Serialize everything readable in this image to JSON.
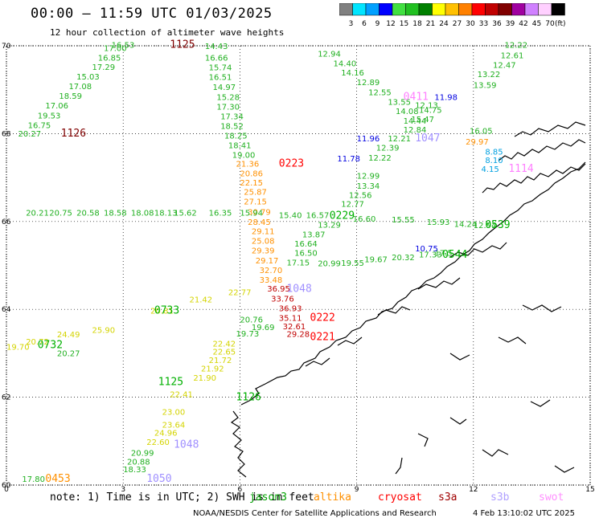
{
  "header": {
    "title": "00:00 – 11:59 UTC 01/03/2025",
    "subtitle": "12 hour collection of altimeter wave heights"
  },
  "color_scale": {
    "bins": [
      {
        "label": "3",
        "color": "#808080"
      },
      {
        "label": "6",
        "color": "#00e5ff"
      },
      {
        "label": "9",
        "color": "#00a0ff"
      },
      {
        "label": "12",
        "color": "#0000ff"
      },
      {
        "label": "15",
        "color": "#40e040"
      },
      {
        "label": "18",
        "color": "#20c020"
      },
      {
        "label": "21",
        "color": "#008000"
      },
      {
        "label": "24",
        "color": "#ffff00"
      },
      {
        "label": "27",
        "color": "#ffc000"
      },
      {
        "label": "30",
        "color": "#ff8000"
      },
      {
        "label": "33",
        "color": "#ff0000"
      },
      {
        "label": "36",
        "color": "#c00000"
      },
      {
        "label": "39",
        "color": "#800000"
      },
      {
        "label": "42",
        "color": "#a000a0"
      },
      {
        "label": "45",
        "color": "#d080ff"
      },
      {
        "label": "70",
        "color": "#ffd0ff"
      },
      {
        "label": "",
        "color": "#000000"
      }
    ],
    "unit": "(ft)"
  },
  "axes": {
    "lat_ticks": [
      "70",
      "68",
      "66",
      "64",
      "62",
      "60"
    ],
    "lon_ticks": [
      "0",
      "3",
      "6",
      "9",
      "12",
      "15"
    ]
  },
  "swh_tracks": [
    {
      "color": "#20b020",
      "points": [
        {
          "lat": 69.95,
          "lon": 2.7,
          "swh": "16.53"
        },
        {
          "lat": 69.88,
          "lon": 2.5,
          "swh": "17.00"
        },
        {
          "lat": 69.66,
          "lon": 2.35,
          "swh": "16.85"
        },
        {
          "lat": 69.45,
          "lon": 2.2,
          "swh": "17.29"
        },
        {
          "lat": 69.23,
          "lon": 1.8,
          "swh": "15.03"
        },
        {
          "lat": 69.01,
          "lon": 1.6,
          "swh": "17.08"
        },
        {
          "lat": 68.79,
          "lon": 1.35,
          "swh": "18.59"
        },
        {
          "lat": 68.57,
          "lon": 1.0,
          "swh": "17.06"
        },
        {
          "lat": 68.35,
          "lon": 0.8,
          "swh": "19.53"
        },
        {
          "lat": 68.13,
          "lon": 0.55,
          "swh": "16.75"
        },
        {
          "lat": 67.93,
          "lon": 0.3,
          "swh": "20.27"
        }
      ]
    },
    {
      "color": "#20b020",
      "points": [
        {
          "lat": 69.93,
          "lon": 5.1,
          "swh": "14.43"
        },
        {
          "lat": 69.66,
          "lon": 5.1,
          "swh": "16.66"
        },
        {
          "lat": 69.44,
          "lon": 5.2,
          "swh": "15.74"
        },
        {
          "lat": 69.22,
          "lon": 5.2,
          "swh": "16.51"
        },
        {
          "lat": 68.99,
          "lon": 5.3,
          "swh": "14.97"
        },
        {
          "lat": 68.77,
          "lon": 5.4,
          "swh": "15.28"
        },
        {
          "lat": 68.55,
          "lon": 5.4,
          "swh": "17.30"
        },
        {
          "lat": 68.33,
          "lon": 5.5,
          "swh": "17.34"
        },
        {
          "lat": 68.11,
          "lon": 5.5,
          "swh": "18.52"
        },
        {
          "lat": 67.89,
          "lon": 5.6,
          "swh": "18.25"
        },
        {
          "lat": 67.67,
          "lon": 5.7,
          "swh": "18.41"
        },
        {
          "lat": 67.45,
          "lon": 5.8,
          "swh": "19.00"
        }
      ]
    },
    {
      "color": "#ff9000",
      "points": [
        {
          "lat": 67.25,
          "lon": 5.9,
          "swh": "21.36"
        },
        {
          "lat": 67.03,
          "lon": 6.0,
          "swh": "20.86"
        },
        {
          "lat": 66.82,
          "lon": 6.0,
          "swh": "22.15"
        },
        {
          "lat": 66.61,
          "lon": 6.1,
          "swh": "25.87"
        },
        {
          "lat": 66.39,
          "lon": 6.1,
          "swh": "27.15"
        },
        {
          "lat": 66.15,
          "lon": 6.2,
          "swh": "30.79"
        },
        {
          "lat": 65.92,
          "lon": 6.2,
          "swh": "28.45"
        },
        {
          "lat": 65.71,
          "lon": 6.3,
          "swh": "29.11"
        },
        {
          "lat": 65.49,
          "lon": 6.3,
          "swh": "25.08"
        },
        {
          "lat": 65.27,
          "lon": 6.3,
          "swh": "29.39"
        },
        {
          "lat": 65.05,
          "lon": 6.4,
          "swh": "29.17"
        },
        {
          "lat": 64.83,
          "lon": 6.5,
          "swh": "32.70"
        },
        {
          "lat": 64.61,
          "lon": 6.5,
          "swh": "33.48"
        }
      ]
    },
    {
      "color": "#c00000",
      "points": [
        {
          "lat": 64.41,
          "lon": 6.7,
          "swh": "36.95"
        },
        {
          "lat": 64.18,
          "lon": 6.8,
          "swh": "33.76"
        },
        {
          "lat": 63.96,
          "lon": 7.0,
          "swh": "36.93"
        },
        {
          "lat": 63.74,
          "lon": 7.0,
          "swh": "35.11"
        },
        {
          "lat": 63.55,
          "lon": 7.1,
          "swh": "32.61"
        },
        {
          "lat": 63.37,
          "lon": 7.2,
          "swh": "29.28"
        }
      ]
    },
    {
      "color": "#20b020",
      "points": [
        {
          "lat": 69.75,
          "lon": 8.0,
          "swh": "12.94"
        },
        {
          "lat": 69.53,
          "lon": 8.4,
          "swh": "14.40"
        },
        {
          "lat": 69.32,
          "lon": 8.6,
          "swh": "14.16"
        },
        {
          "lat": 69.1,
          "lon": 9.0,
          "swh": "12.89"
        },
        {
          "lat": 68.88,
          "lon": 9.3,
          "swh": "12.55"
        },
        {
          "lat": 68.66,
          "lon": 9.8,
          "swh": "13.55"
        },
        {
          "lat": 68.45,
          "lon": 10.0,
          "swh": "14.08"
        },
        {
          "lat": 68.23,
          "lon": 10.2,
          "swh": "14.44"
        },
        {
          "lat": 68.03,
          "lon": 10.2,
          "swh": "12.84"
        },
        {
          "lat": 67.82,
          "lon": 9.8,
          "swh": "12.21"
        },
        {
          "lat": 67.61,
          "lon": 9.5,
          "swh": "12.39"
        },
        {
          "lat": 67.39,
          "lon": 9.3,
          "swh": "12.22"
        },
        {
          "lat": 66.97,
          "lon": 9.0,
          "swh": "12.99"
        },
        {
          "lat": 66.75,
          "lon": 9.0,
          "swh": "13.34"
        },
        {
          "lat": 66.54,
          "lon": 8.8,
          "swh": "12.56"
        },
        {
          "lat": 66.33,
          "lon": 8.6,
          "swh": "12.77"
        },
        {
          "lat": 65.86,
          "lon": 8.0,
          "swh": "13.29"
        },
        {
          "lat": 65.64,
          "lon": 7.6,
          "swh": "13.87"
        },
        {
          "lat": 65.43,
          "lon": 7.4,
          "swh": "16.64"
        },
        {
          "lat": 65.22,
          "lon": 7.4,
          "swh": "16.50"
        },
        {
          "lat": 65.0,
          "lon": 7.2,
          "swh": "17.15"
        }
      ]
    },
    {
      "color": "#20b020",
      "points": [
        {
          "lat": 66.13,
          "lon": 0.5,
          "swh": "20.21"
        },
        {
          "lat": 66.13,
          "lon": 1.1,
          "swh": "20.75"
        },
        {
          "lat": 66.13,
          "lon": 1.8,
          "swh": "20.58"
        },
        {
          "lat": 66.13,
          "lon": 2.5,
          "swh": "18.58"
        },
        {
          "lat": 66.13,
          "lon": 3.2,
          "swh": "18.08"
        },
        {
          "lat": 66.13,
          "lon": 3.8,
          "swh": "18.13"
        },
        {
          "lat": 66.13,
          "lon": 4.3,
          "swh": "15.62"
        },
        {
          "lat": 66.13,
          "lon": 5.2,
          "swh": "16.35"
        },
        {
          "lat": 66.13,
          "lon": 6.0,
          "swh": "15.94"
        },
        {
          "lat": 66.08,
          "lon": 7.0,
          "swh": "15.40"
        },
        {
          "lat": 66.08,
          "lon": 7.7,
          "swh": "16.57"
        },
        {
          "lat": 66.0,
          "lon": 8.9,
          "swh": "16.60"
        },
        {
          "lat": 65.98,
          "lon": 9.9,
          "swh": "15.55"
        },
        {
          "lat": 65.92,
          "lon": 10.8,
          "swh": "15.93"
        },
        {
          "lat": 65.88,
          "lon": 11.5,
          "swh": "14.24"
        },
        {
          "lat": 65.85,
          "lon": 12.0,
          "swh": "12.94"
        }
      ]
    },
    {
      "color": "#20b020",
      "points": [
        {
          "lat": 64.98,
          "lon": 8.0,
          "swh": "20.99"
        },
        {
          "lat": 64.99,
          "lon": 8.6,
          "swh": "19.55"
        },
        {
          "lat": 65.07,
          "lon": 9.2,
          "swh": "19.67"
        },
        {
          "lat": 65.12,
          "lon": 9.9,
          "swh": "20.32"
        },
        {
          "lat": 65.18,
          "lon": 10.6,
          "swh": "17.33"
        },
        {
          "lat": 65.22,
          "lon": 11.0,
          "swh": "17.5"
        }
      ]
    },
    {
      "color": "#d4d400",
      "points": [
        {
          "lat": 63.08,
          "lon": 0.0,
          "swh": "19.70"
        },
        {
          "lat": 63.2,
          "lon": 0.5,
          "swh": "20.72"
        },
        {
          "lat": 63.36,
          "lon": 1.3,
          "swh": "24.49"
        },
        {
          "lat": 63.46,
          "lon": 2.2,
          "swh": "25.90"
        },
        {
          "lat": 63.9,
          "lon": 3.7,
          "swh": "20.81"
        },
        {
          "lat": 64.16,
          "lon": 4.7,
          "swh": "21.42"
        },
        {
          "lat": 64.32,
          "lon": 5.7,
          "swh": "22.77"
        }
      ]
    },
    {
      "color": "#20b020",
      "points": [
        {
          "lat": 62.93,
          "lon": 1.3,
          "swh": "20.27"
        },
        {
          "lat": 63.7,
          "lon": 6.0,
          "swh": "20.76"
        },
        {
          "lat": 63.38,
          "lon": 5.9,
          "swh": "19.73"
        },
        {
          "lat": 63.53,
          "lon": 6.3,
          "swh": "19.69"
        }
      ]
    },
    {
      "color": "#d4d400",
      "points": [
        {
          "lat": 63.15,
          "lon": 5.3,
          "swh": "22.42"
        },
        {
          "lat": 62.97,
          "lon": 5.3,
          "swh": "22.65"
        },
        {
          "lat": 62.78,
          "lon": 5.2,
          "swh": "21.72"
        },
        {
          "lat": 62.59,
          "lon": 5.0,
          "swh": "21.92"
        },
        {
          "lat": 62.38,
          "lon": 4.8,
          "swh": "21.90"
        },
        {
          "lat": 62.0,
          "lon": 4.2,
          "swh": "22.41"
        },
        {
          "lat": 61.6,
          "lon": 4.0,
          "swh": "23.00"
        },
        {
          "lat": 61.31,
          "lon": 4.0,
          "swh": "23.64"
        },
        {
          "lat": 61.12,
          "lon": 3.8,
          "swh": "24.96"
        },
        {
          "lat": 60.91,
          "lon": 3.6,
          "swh": "22.60"
        }
      ]
    },
    {
      "color": "#20b020",
      "points": [
        {
          "lat": 60.67,
          "lon": 3.2,
          "swh": "20.99"
        },
        {
          "lat": 60.47,
          "lon": 3.1,
          "swh": "20.88"
        },
        {
          "lat": 60.29,
          "lon": 3.0,
          "swh": "18.33"
        },
        {
          "lat": 60.07,
          "lon": 0.4,
          "swh": "17.80"
        }
      ]
    },
    {
      "color": "#20b020",
      "points": [
        {
          "lat": 69.95,
          "lon": 12.8,
          "swh": "12.22"
        },
        {
          "lat": 69.72,
          "lon": 12.7,
          "swh": "12.61"
        },
        {
          "lat": 69.5,
          "lon": 12.5,
          "swh": "12.47"
        },
        {
          "lat": 69.29,
          "lon": 12.1,
          "swh": "13.22"
        },
        {
          "lat": 69.04,
          "lon": 12.0,
          "swh": "13.59"
        },
        {
          "lat": 68.47,
          "lon": 10.6,
          "swh": "14.75"
        },
        {
          "lat": 68.26,
          "lon": 10.4,
          "swh": "15.47"
        },
        {
          "lat": 68.0,
          "lon": 11.9,
          "swh": "16.05"
        }
      ]
    },
    {
      "color": "#0000e0",
      "points": [
        {
          "lat": 68.77,
          "lon": 11.0,
          "swh": "11.98"
        },
        {
          "lat": 67.82,
          "lon": 9.0,
          "swh": "11.96"
        },
        {
          "lat": 67.37,
          "lon": 8.5,
          "swh": "11.78"
        },
        {
          "lat": 65.32,
          "lon": 10.5,
          "swh": "10.75"
        }
      ]
    },
    {
      "color": "#20b020",
      "points": [
        {
          "lat": 68.58,
          "lon": 10.5,
          "swh": "12.13"
        }
      ]
    },
    {
      "color": "#ff9000",
      "points": [
        {
          "lat": 67.75,
          "lon": 11.8,
          "swh": "29.97"
        }
      ]
    },
    {
      "color": "#00a0e0",
      "points": [
        {
          "lat": 67.52,
          "lon": 12.3,
          "swh": "8.85"
        },
        {
          "lat": 67.33,
          "lon": 12.3,
          "swh": "8.10"
        },
        {
          "lat": 67.13,
          "lon": 12.2,
          "swh": "4.15"
        }
      ]
    }
  ],
  "pass_times": [
    {
      "text": "1125",
      "lat": 69.95,
      "lon": 4.2,
      "color": "#800000"
    },
    {
      "text": "1126",
      "lat": 67.93,
      "lon": 1.4,
      "color": "#800000"
    },
    {
      "text": "0223",
      "lat": 67.25,
      "lon": 7.0,
      "color": "#ff0000"
    },
    {
      "text": "0411",
      "lat": 68.77,
      "lon": 10.2,
      "color": "#ff80ff"
    },
    {
      "text": "1047",
      "lat": 67.82,
      "lon": 10.5,
      "color": "#a090ff"
    },
    {
      "text": "1114",
      "lat": 67.13,
      "lon": 12.9,
      "color": "#ff80ff"
    },
    {
      "text": "0229",
      "lat": 66.06,
      "lon": 8.3,
      "color": "#00b000"
    },
    {
      "text": "0539",
      "lat": 65.85,
      "lon": 12.3,
      "color": "#00b000"
    },
    {
      "text": "0544",
      "lat": 65.17,
      "lon": 11.2,
      "color": "#00b000"
    },
    {
      "text": "1048",
      "lat": 64.4,
      "lon": 7.2,
      "color": "#a090ff"
    },
    {
      "text": "0733",
      "lat": 63.9,
      "lon": 3.8,
      "color": "#00b000"
    },
    {
      "text": "0732",
      "lat": 63.12,
      "lon": 0.8,
      "color": "#00b000"
    },
    {
      "text": "0222",
      "lat": 63.74,
      "lon": 7.8,
      "color": "#ff0000"
    },
    {
      "text": "0221",
      "lat": 63.3,
      "lon": 7.8,
      "color": "#ff0000"
    },
    {
      "text": "1125",
      "lat": 62.28,
      "lon": 3.9,
      "color": "#00b000"
    },
    {
      "text": "1126",
      "lat": 61.93,
      "lon": 5.9,
      "color": "#00b000"
    },
    {
      "text": "1048",
      "lat": 60.85,
      "lon": 4.3,
      "color": "#a090ff"
    },
    {
      "text": "1050",
      "lat": 60.07,
      "lon": 3.6,
      "color": "#a090ff"
    },
    {
      "text": "0453",
      "lat": 60.07,
      "lon": 1.0,
      "color": "#ff9000"
    }
  ],
  "footer": {
    "note": "note: 1) Time is in UTC; 2) SWH is in feet",
    "satellites": [
      {
        "name": "jason3",
        "color": "#00a000"
      },
      {
        "name": "altika",
        "color": "#ff9000"
      },
      {
        "name": "cryosat",
        "color": "#ff0000"
      },
      {
        "name": "s3a",
        "color": "#a00000"
      },
      {
        "name": "s3b",
        "color": "#b0a0ff"
      },
      {
        "name": "swot",
        "color": "#ff90ff"
      }
    ],
    "credit": "NOAA/NESDIS Center for Satellite Applications and Research",
    "timestamp": "4 Feb 13:10:02 UTC 2025"
  }
}
